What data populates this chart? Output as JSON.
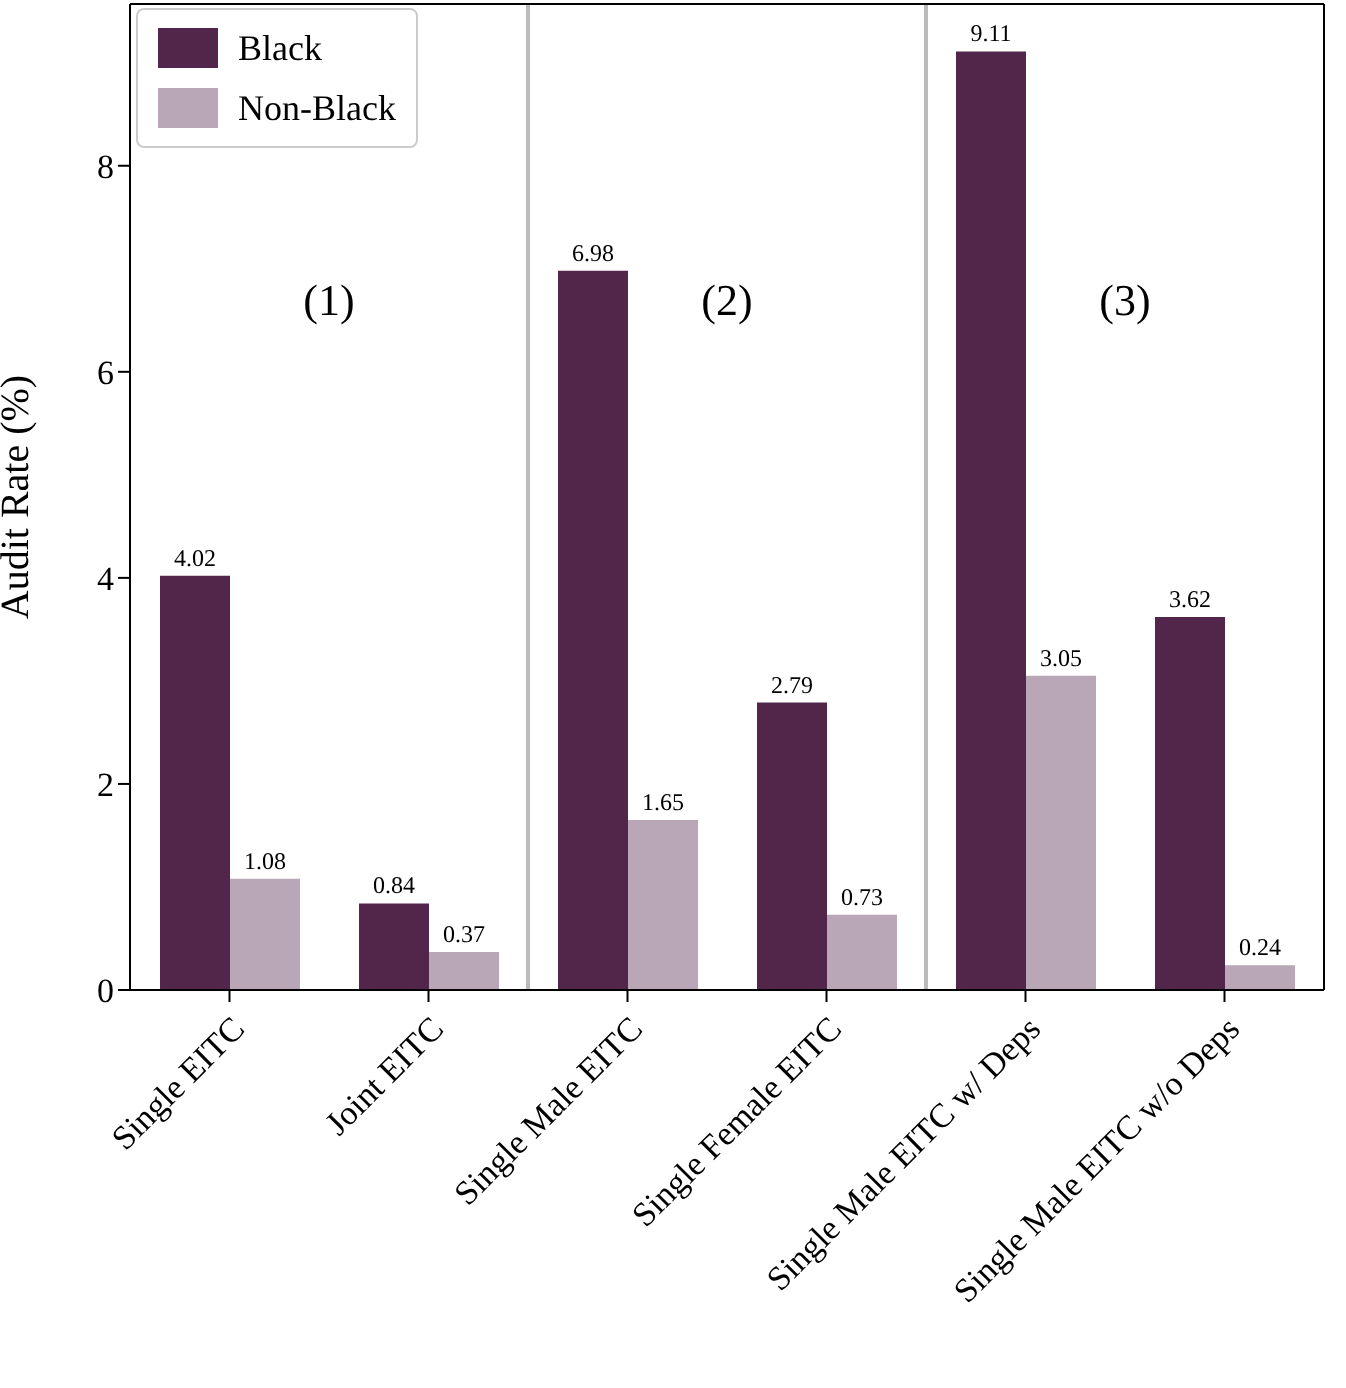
{
  "chart_data": {
    "type": "bar",
    "ylabel": "Audit Rate (%)",
    "categories": [
      "Single EITC",
      "Joint EITC",
      "Single Male EITC",
      "Single Female EITC",
      "Single Male EITC w/ Deps",
      "Single Male EITC w/o Deps"
    ],
    "series": [
      {
        "name": "Black",
        "color": "#52264a",
        "values": [
          4.02,
          0.84,
          6.98,
          2.79,
          9.11,
          3.62
        ]
      },
      {
        "name": "Non-Black",
        "color": "#b9a7b8",
        "values": [
          1.08,
          0.37,
          1.65,
          0.73,
          3.05,
          0.24
        ]
      }
    ],
    "ylim": [
      0,
      9.57
    ],
    "yticks": [
      0,
      2,
      4,
      6,
      8
    ],
    "annotations": [
      "(1)",
      "(2)",
      "(3)"
    ],
    "data_labels": true,
    "legend": "top left"
  }
}
